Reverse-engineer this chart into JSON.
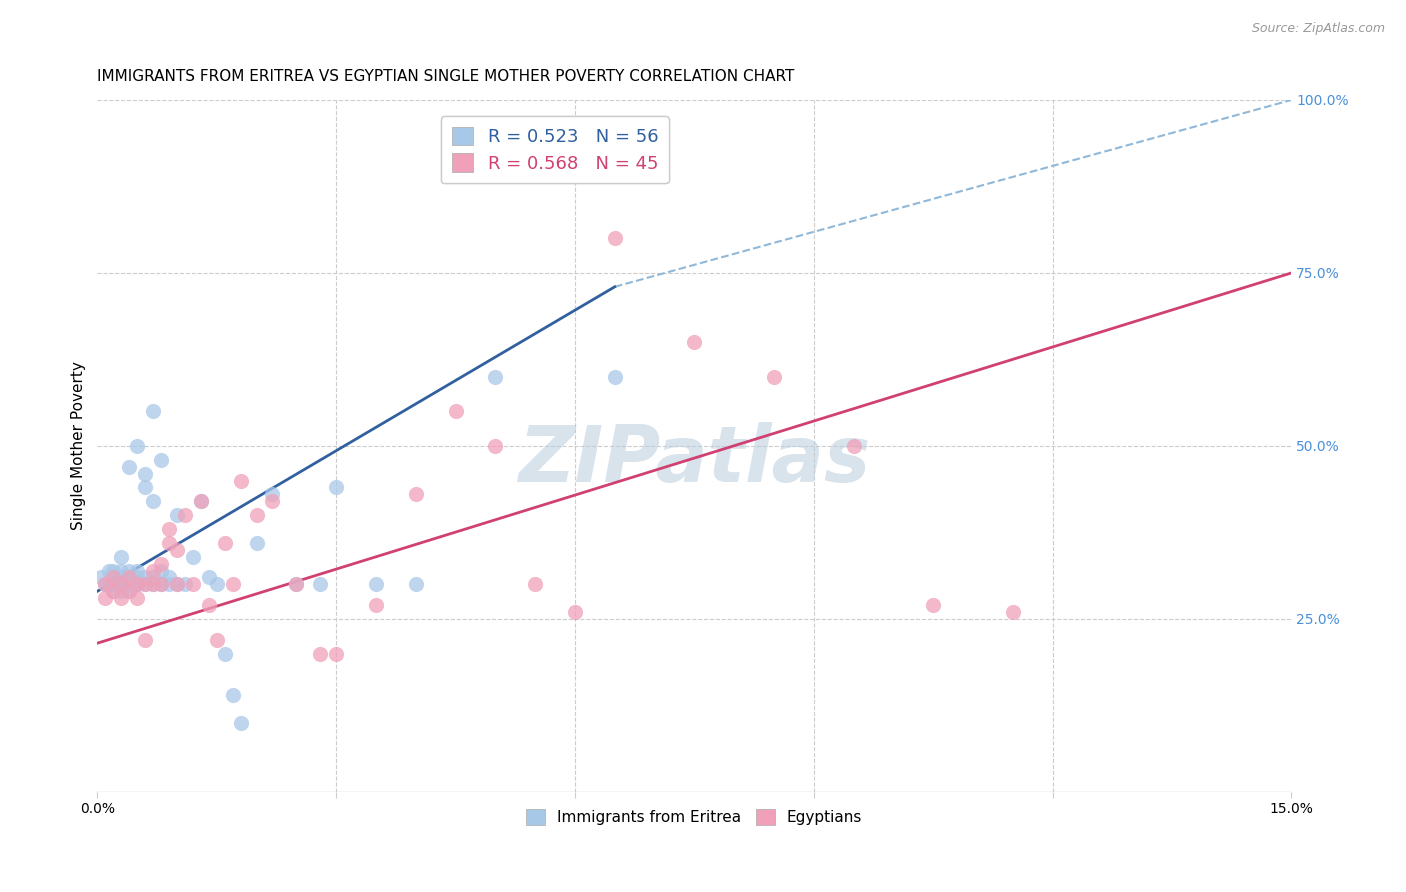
{
  "title": "IMMIGRANTS FROM ERITREA VS EGYPTIAN SINGLE MOTHER POVERTY CORRELATION CHART",
  "source": "Source: ZipAtlas.com",
  "ylabel": "Single Mother Poverty",
  "xlim": [
    0.0,
    0.15
  ],
  "ylim": [
    0.0,
    1.0
  ],
  "ytick_vals_right": [
    0.25,
    0.5,
    0.75,
    1.0
  ],
  "blue_color": "#a8c8e8",
  "pink_color": "#f0a0b8",
  "blue_line_color": "#3060a0",
  "pink_line_color": "#d04070",
  "dashed_line_color": "#90b8d8",
  "legend_blue_R": "R = 0.523",
  "legend_blue_N": "N = 56",
  "legend_pink_R": "R = 0.568",
  "legend_pink_N": "N = 45",
  "watermark": "ZIPatlas",
  "blue_points_x": [
    0.0005,
    0.001,
    0.0015,
    0.0015,
    0.002,
    0.002,
    0.002,
    0.002,
    0.003,
    0.003,
    0.003,
    0.003,
    0.003,
    0.003,
    0.004,
    0.004,
    0.004,
    0.004,
    0.004,
    0.005,
    0.005,
    0.005,
    0.005,
    0.005,
    0.006,
    0.006,
    0.006,
    0.006,
    0.007,
    0.007,
    0.007,
    0.007,
    0.008,
    0.008,
    0.008,
    0.009,
    0.009,
    0.01,
    0.01,
    0.011,
    0.012,
    0.013,
    0.014,
    0.015,
    0.016,
    0.017,
    0.018,
    0.02,
    0.022,
    0.025,
    0.028,
    0.03,
    0.035,
    0.04,
    0.05,
    0.065
  ],
  "blue_points_y": [
    0.31,
    0.3,
    0.32,
    0.3,
    0.29,
    0.31,
    0.3,
    0.32,
    0.3,
    0.29,
    0.31,
    0.3,
    0.32,
    0.34,
    0.3,
    0.31,
    0.29,
    0.32,
    0.47,
    0.3,
    0.31,
    0.3,
    0.32,
    0.5,
    0.3,
    0.31,
    0.44,
    0.46,
    0.3,
    0.31,
    0.42,
    0.55,
    0.3,
    0.32,
    0.48,
    0.3,
    0.31,
    0.3,
    0.4,
    0.3,
    0.34,
    0.42,
    0.31,
    0.3,
    0.2,
    0.14,
    0.1,
    0.36,
    0.43,
    0.3,
    0.3,
    0.44,
    0.3,
    0.3,
    0.6,
    0.6
  ],
  "pink_points_x": [
    0.001,
    0.001,
    0.002,
    0.002,
    0.003,
    0.003,
    0.004,
    0.004,
    0.005,
    0.005,
    0.006,
    0.006,
    0.007,
    0.007,
    0.008,
    0.008,
    0.009,
    0.009,
    0.01,
    0.01,
    0.011,
    0.012,
    0.013,
    0.014,
    0.015,
    0.016,
    0.017,
    0.018,
    0.02,
    0.022,
    0.025,
    0.028,
    0.03,
    0.035,
    0.04,
    0.045,
    0.05,
    0.055,
    0.06,
    0.065,
    0.075,
    0.085,
    0.095,
    0.105,
    0.115
  ],
  "pink_points_y": [
    0.28,
    0.3,
    0.29,
    0.31,
    0.3,
    0.28,
    0.29,
    0.31,
    0.3,
    0.28,
    0.3,
    0.22,
    0.32,
    0.3,
    0.3,
    0.33,
    0.36,
    0.38,
    0.3,
    0.35,
    0.4,
    0.3,
    0.42,
    0.27,
    0.22,
    0.36,
    0.3,
    0.45,
    0.4,
    0.42,
    0.3,
    0.2,
    0.2,
    0.27,
    0.43,
    0.55,
    0.5,
    0.3,
    0.26,
    0.8,
    0.65,
    0.6,
    0.5,
    0.27,
    0.26
  ],
  "blue_line_x": [
    0.0,
    0.065
  ],
  "blue_line_y": [
    0.29,
    0.73
  ],
  "pink_line_x": [
    0.0,
    0.15
  ],
  "pink_line_y": [
    0.215,
    0.75
  ],
  "dashed_line_x": [
    0.065,
    0.15
  ],
  "dashed_line_y": [
    0.73,
    1.0
  ],
  "title_fontsize": 11,
  "label_fontsize": 11,
  "tick_fontsize": 10,
  "right_tick_color": "#4a90d9",
  "grid_color": "#cccccc"
}
